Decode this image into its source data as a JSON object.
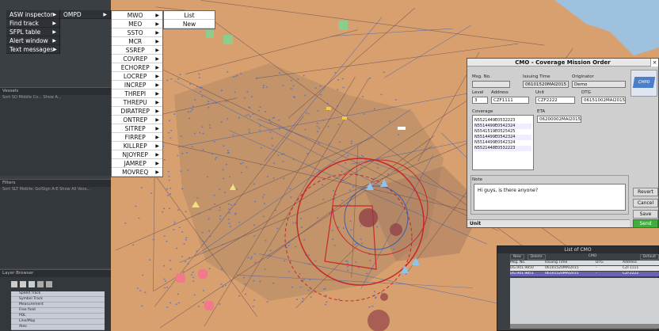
{
  "main_menu": {
    "items": [
      "ASW inspector",
      "Find track",
      "SFPL table",
      "Alert window",
      "Text messages"
    ],
    "arrow": "▶"
  },
  "ompd_menu": {
    "label": "OMPD"
  },
  "message_menu": {
    "items": [
      "MWO",
      "MEO",
      "SSTO",
      "MCR",
      "SSREP",
      "COVREP",
      "ECHOREP",
      "LOCREP",
      "INCREP",
      "THREPI",
      "THREPU",
      "DIRATREP",
      "ONTREP",
      "SITREP",
      "FIRREP",
      "KILLREP",
      "NJOYREP",
      "JAMREP",
      "MOVREQ"
    ]
  },
  "mwo_submenu": {
    "items": [
      "List",
      "New"
    ]
  },
  "panels": {
    "panel1": {
      "title": "Vessels",
      "cols": "Sort SO Middle Co... Show A..."
    },
    "panel2": {
      "title": "Filters",
      "cols": "Sort SLT       Mobile: GolSign A-E      Show All Vess..."
    },
    "panel3": {
      "title": "Layer Browser",
      "layers": [
        "Speed Track",
        "Symbol Track",
        "Measurement",
        "Free field",
        "PDL",
        "Line/Map",
        "Aleo"
      ]
    }
  },
  "dialog": {
    "title": "CMO - Coverage Mission Order",
    "logo": "CMPD",
    "msg_no_label": "Msg. No.",
    "issuing_time_label": "Issuing Time",
    "issuing_time_value": "06101520MAI2015",
    "originator_label": "Originator",
    "originator_value": "Demo",
    "level_label": "Level",
    "level_value": "3",
    "address_label": "Address",
    "address_value": "CZF1111",
    "unit_label": "Unit",
    "unit_value": "CZF2222",
    "dtg_label": "DTG",
    "dtg_value": "06151002MAI2015",
    "coverage_label": "Coverage",
    "coverage_items": [
      "N5521449E0532223",
      "N5514499E0542324",
      "N5541519E0525425",
      "N5514499E0542324",
      "N5514499E0542324",
      "N5521448E0532223"
    ],
    "eta_label": "ETA",
    "eta_value": "06200002MAI2015",
    "note_label": "Note",
    "note_value": "Hi guys, is there anyone?",
    "status_label": "Unit",
    "buttons": {
      "revert": "Revert",
      "cancel": "Cancel",
      "save": "Save",
      "send": "Send"
    }
  },
  "list_window": {
    "title": "List of CMO",
    "toolbar": [
      "New",
      "Delete",
      "CMO",
      "Default"
    ],
    "columns": [
      "Msg. No.",
      "Issuing Time",
      "DTG",
      "Address"
    ],
    "rows": [
      [
        "DG.001.9850",
        "06101520MAI2015",
        "-",
        "CZF1111"
      ],
      [
        "DG.001.9851",
        "06101520MAI2015",
        "-",
        "CZF2222"
      ]
    ]
  },
  "colors": {
    "map_bg": "#d9a06f",
    "route_blue": "#3b5fb0",
    "circle_red": "#c62828",
    "panel_dark": "#3b4045"
  }
}
